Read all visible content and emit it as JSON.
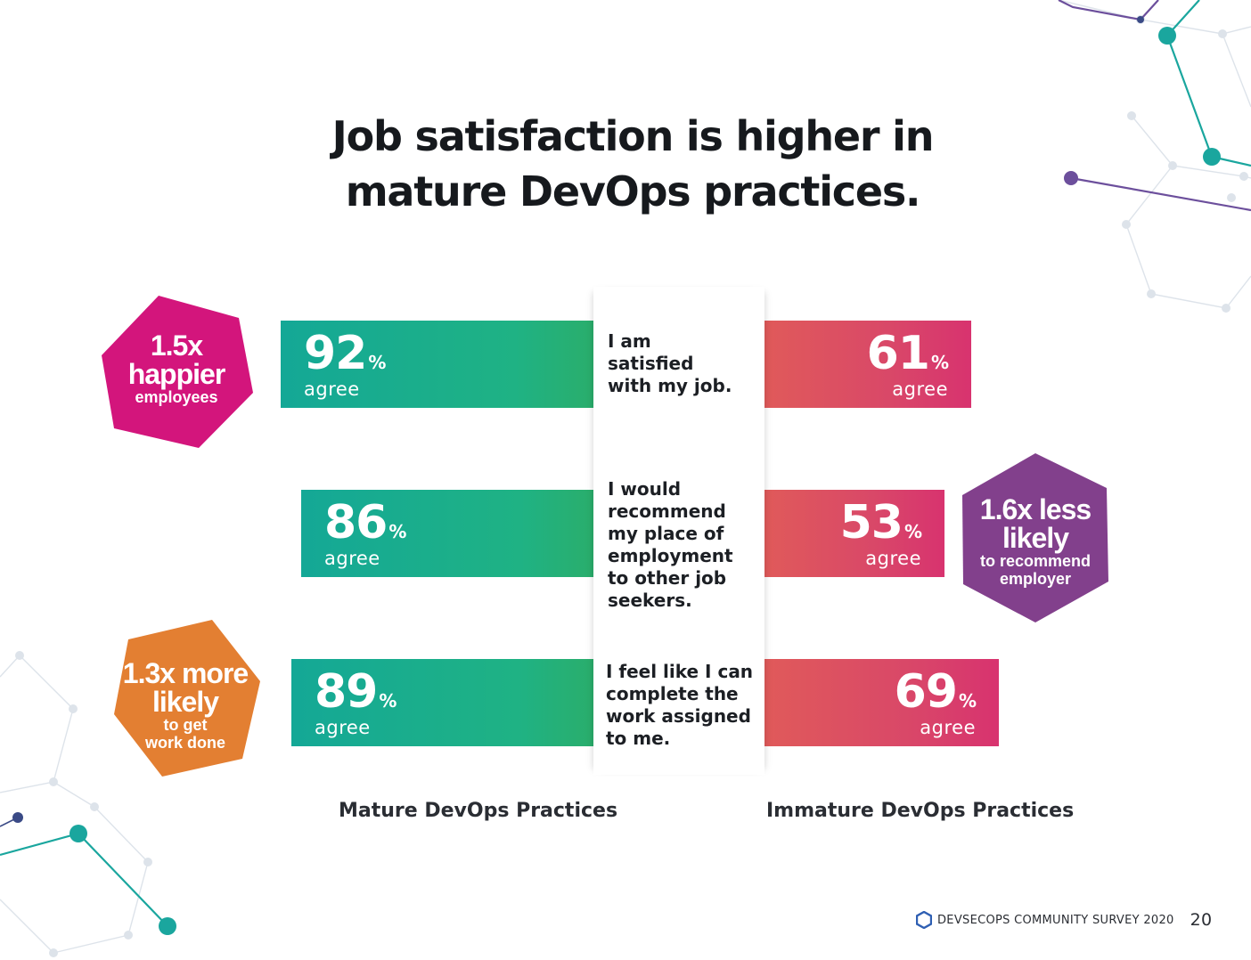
{
  "title": {
    "line1": "Job satisfaction is higher in",
    "line2": "mature DevOps practices."
  },
  "chart_data": {
    "type": "bar",
    "categories": [
      "I am satisfied with my job.",
      "I would recommend my place of employment to other job seekers.",
      "I feel like I can complete the work assigned to me."
    ],
    "series": [
      {
        "name": "Mature DevOps Practices",
        "values": [
          92,
          86,
          89
        ]
      },
      {
        "name": "Immature DevOps Practices",
        "values": [
          61,
          53,
          69
        ]
      }
    ],
    "unit": "%",
    "value_label": "agree",
    "colors": {
      "mature": "#1db08a",
      "immature": "#dc4a66"
    }
  },
  "statements": [
    {
      "lines": [
        "I am",
        "satisfied",
        "with my job."
      ]
    },
    {
      "lines": [
        "I would",
        "recommend",
        "my place of",
        "employment",
        "to other job",
        "seekers."
      ]
    },
    {
      "lines": [
        "I feel like I can",
        "complete the",
        "work assigned",
        "to me."
      ]
    }
  ],
  "mature_values": [
    {
      "num": "92",
      "pct": "%",
      "agree": "agree"
    },
    {
      "num": "86",
      "pct": "%",
      "agree": "agree"
    },
    {
      "num": "89",
      "pct": "%",
      "agree": "agree"
    }
  ],
  "immature_values": [
    {
      "num": "61",
      "pct": "%",
      "agree": "agree"
    },
    {
      "num": "53",
      "pct": "%",
      "agree": "agree"
    },
    {
      "num": "69",
      "pct": "%",
      "agree": "agree"
    }
  ],
  "callouts": {
    "happier": {
      "big1": "1.5x",
      "big2": "happier",
      "small1": "employees",
      "color": "#d3157c"
    },
    "recommend": {
      "big1": "1.6x less",
      "big2": "likely",
      "small1": "to recommend",
      "small2": "employer",
      "color": "#82408c"
    },
    "work": {
      "big1": "1.3x more",
      "big2": "likely",
      "small1": "to get",
      "small2": "work done",
      "color": "#e37f32"
    }
  },
  "labels": {
    "mature": "Mature DevOps Practices",
    "immature": "Immature DevOps Practices"
  },
  "footer": {
    "text": "DEVSECOPS COMMUNITY SURVEY 2020",
    "page": "20",
    "icon": "hexagon-logo-icon"
  }
}
